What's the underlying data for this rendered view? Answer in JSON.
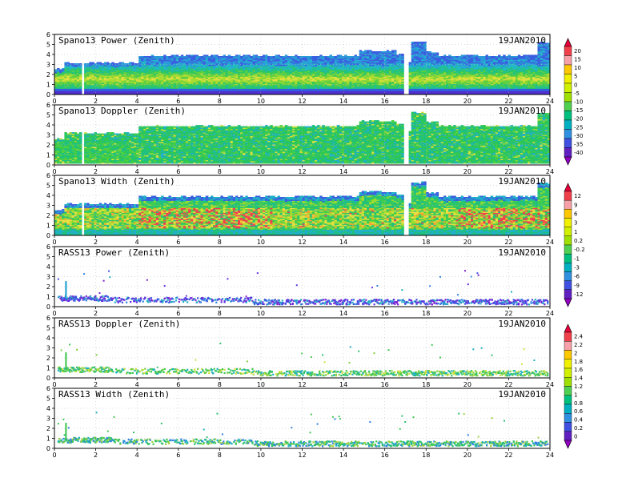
{
  "chart_data": [
    {
      "type": "heatmap",
      "title": "Spano13 Power (Zenith)",
      "date_label": "19JAN2010",
      "xlim": [
        0,
        24
      ],
      "ylim": [
        0,
        6
      ],
      "xticks": [
        "0",
        "2",
        "4",
        "6",
        "8",
        "10",
        "12",
        "14",
        "16",
        "18",
        "20",
        "22",
        "24"
      ],
      "yticks": [
        "0",
        "1",
        "2",
        "3",
        "4",
        "5",
        "6"
      ],
      "grid": "dotted"
    },
    {
      "type": "heatmap",
      "title": "Spano13 Doppler (Zenith)",
      "date_label": "19JAN2010",
      "xlim": [
        0,
        24
      ],
      "ylim": [
        0,
        6
      ],
      "xticks": [
        "0",
        "2",
        "4",
        "6",
        "8",
        "10",
        "12",
        "14",
        "16",
        "18",
        "20",
        "22",
        "24"
      ],
      "yticks": [
        "0",
        "1",
        "2",
        "3",
        "4",
        "5",
        "6"
      ],
      "grid": "dotted"
    },
    {
      "type": "heatmap",
      "title": "Spano13 Width (Zenith)",
      "date_label": "19JAN2010",
      "xlim": [
        0,
        24
      ],
      "ylim": [
        0,
        6
      ],
      "xticks": [
        "0",
        "2",
        "4",
        "6",
        "8",
        "10",
        "12",
        "14",
        "16",
        "18",
        "20",
        "22",
        "24"
      ],
      "yticks": [
        "0",
        "1",
        "2",
        "3",
        "4",
        "5",
        "6"
      ],
      "grid": "dotted"
    },
    {
      "type": "scatter",
      "title": "RASS13 Power (Zenith)",
      "date_label": "19JAN2010",
      "xlim": [
        0,
        24
      ],
      "ylim": [
        0,
        6
      ],
      "xticks": [
        "0",
        "2",
        "4",
        "6",
        "8",
        "10",
        "12",
        "14",
        "16",
        "18",
        "20",
        "22",
        "24"
      ],
      "yticks": [
        "0",
        "1",
        "2",
        "3",
        "4",
        "5",
        "6"
      ],
      "grid": "dotted"
    },
    {
      "type": "scatter",
      "title": "RASS13 Doppler (Zenith)",
      "date_label": "19JAN2010",
      "xlim": [
        0,
        24
      ],
      "ylim": [
        0,
        6
      ],
      "xticks": [
        "0",
        "2",
        "4",
        "6",
        "8",
        "10",
        "12",
        "14",
        "16",
        "18",
        "20",
        "22",
        "24"
      ],
      "yticks": [
        "0",
        "1",
        "2",
        "3",
        "4",
        "5",
        "6"
      ],
      "grid": "dotted"
    },
    {
      "type": "scatter",
      "title": "RASS13 Width (Zenith)",
      "date_label": "19JAN2010",
      "xlim": [
        0,
        24
      ],
      "ylim": [
        0,
        6
      ],
      "xticks": [
        "0",
        "2",
        "4",
        "6",
        "8",
        "10",
        "12",
        "14",
        "16",
        "18",
        "20",
        "22",
        "24"
      ],
      "yticks": [
        "0",
        "1",
        "2",
        "3",
        "4",
        "5",
        "6"
      ],
      "grid": "dotted"
    }
  ],
  "colorbars": [
    {
      "labels": [
        "20",
        "15",
        "10",
        "5",
        "0",
        "-5",
        "-10",
        "-15",
        "-20",
        "-25",
        "-30",
        "-35",
        "-40"
      ],
      "colors": [
        "#e8003a",
        "#f0404a",
        "#f8a0a8",
        "#ffc800",
        "#f0f000",
        "#d0f000",
        "#a0e000",
        "#50d050",
        "#00c080",
        "#00b0c0",
        "#3090e0",
        "#4050e0",
        "#6020c0",
        "#9000c0"
      ]
    },
    {
      "labels": [
        "12",
        "9",
        "6",
        "3",
        "1",
        "0.2",
        "-0.2",
        "-1",
        "-3",
        "-6",
        "-9",
        "-12"
      ],
      "colors": [
        "#e8003a",
        "#f0404a",
        "#f8a0a8",
        "#ffc800",
        "#f0f000",
        "#d0f000",
        "#a0e000",
        "#50d050",
        "#00c080",
        "#00b0c0",
        "#3090e0",
        "#4050e0",
        "#6020c0",
        "#9000c0"
      ]
    },
    {
      "labels": [
        "2.4",
        "2.2",
        "2",
        "1.8",
        "1.6",
        "1.4",
        "1.2",
        "1",
        "0.8",
        "0.6",
        "0.4",
        "0.2",
        "0"
      ],
      "colors": [
        "#e8003a",
        "#f0404a",
        "#f8a0a8",
        "#ffc800",
        "#f0f000",
        "#d0f000",
        "#a0e000",
        "#50d050",
        "#00c080",
        "#00b0c0",
        "#3090e0",
        "#4050e0",
        "#6020c0",
        "#9000c0"
      ]
    }
  ]
}
